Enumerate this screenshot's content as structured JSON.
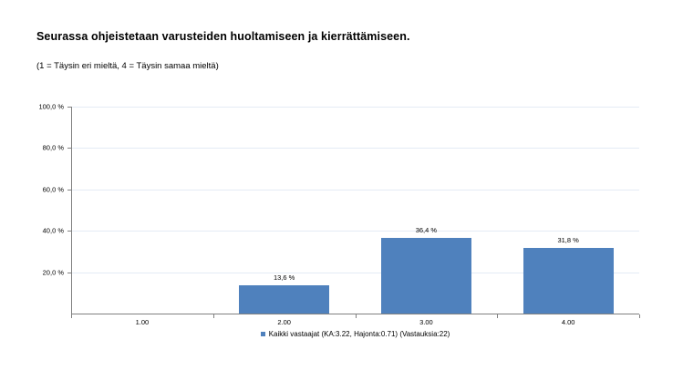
{
  "chart_data": {
    "type": "bar",
    "title": "Seurassa ohjeistetaan varusteiden huoltamiseen ja kierrättämiseen.",
    "subtitle": "(1 = Täysin eri mieltä, 4 = Täysin samaa mieltä)",
    "categories": [
      "1.00",
      "2.00",
      "3.00",
      "4.00"
    ],
    "values": [
      0,
      13.6,
      36.4,
      31.8
    ],
    "value_labels": [
      "",
      "13,6 %",
      "36,4 %",
      "31,8 %"
    ],
    "ylim": [
      0,
      100
    ],
    "yticks": [
      {
        "value": 20,
        "label": "20,0 %"
      },
      {
        "value": 40,
        "label": "40,0 %"
      },
      {
        "value": 60,
        "label": "60,0 %"
      },
      {
        "value": 80,
        "label": "80,0 %"
      },
      {
        "value": 100,
        "label": "100,0 %"
      }
    ],
    "grid": true,
    "legend": {
      "position": "bottom",
      "label": "Kaikki vastaajat (KA:3.22, Hajonta:0.71) (Vastauksia:22)"
    },
    "colors": {
      "bar": "#4f81bd",
      "axis": "#808080",
      "gridline": "#e4ebf5",
      "text": "#000000"
    }
  }
}
